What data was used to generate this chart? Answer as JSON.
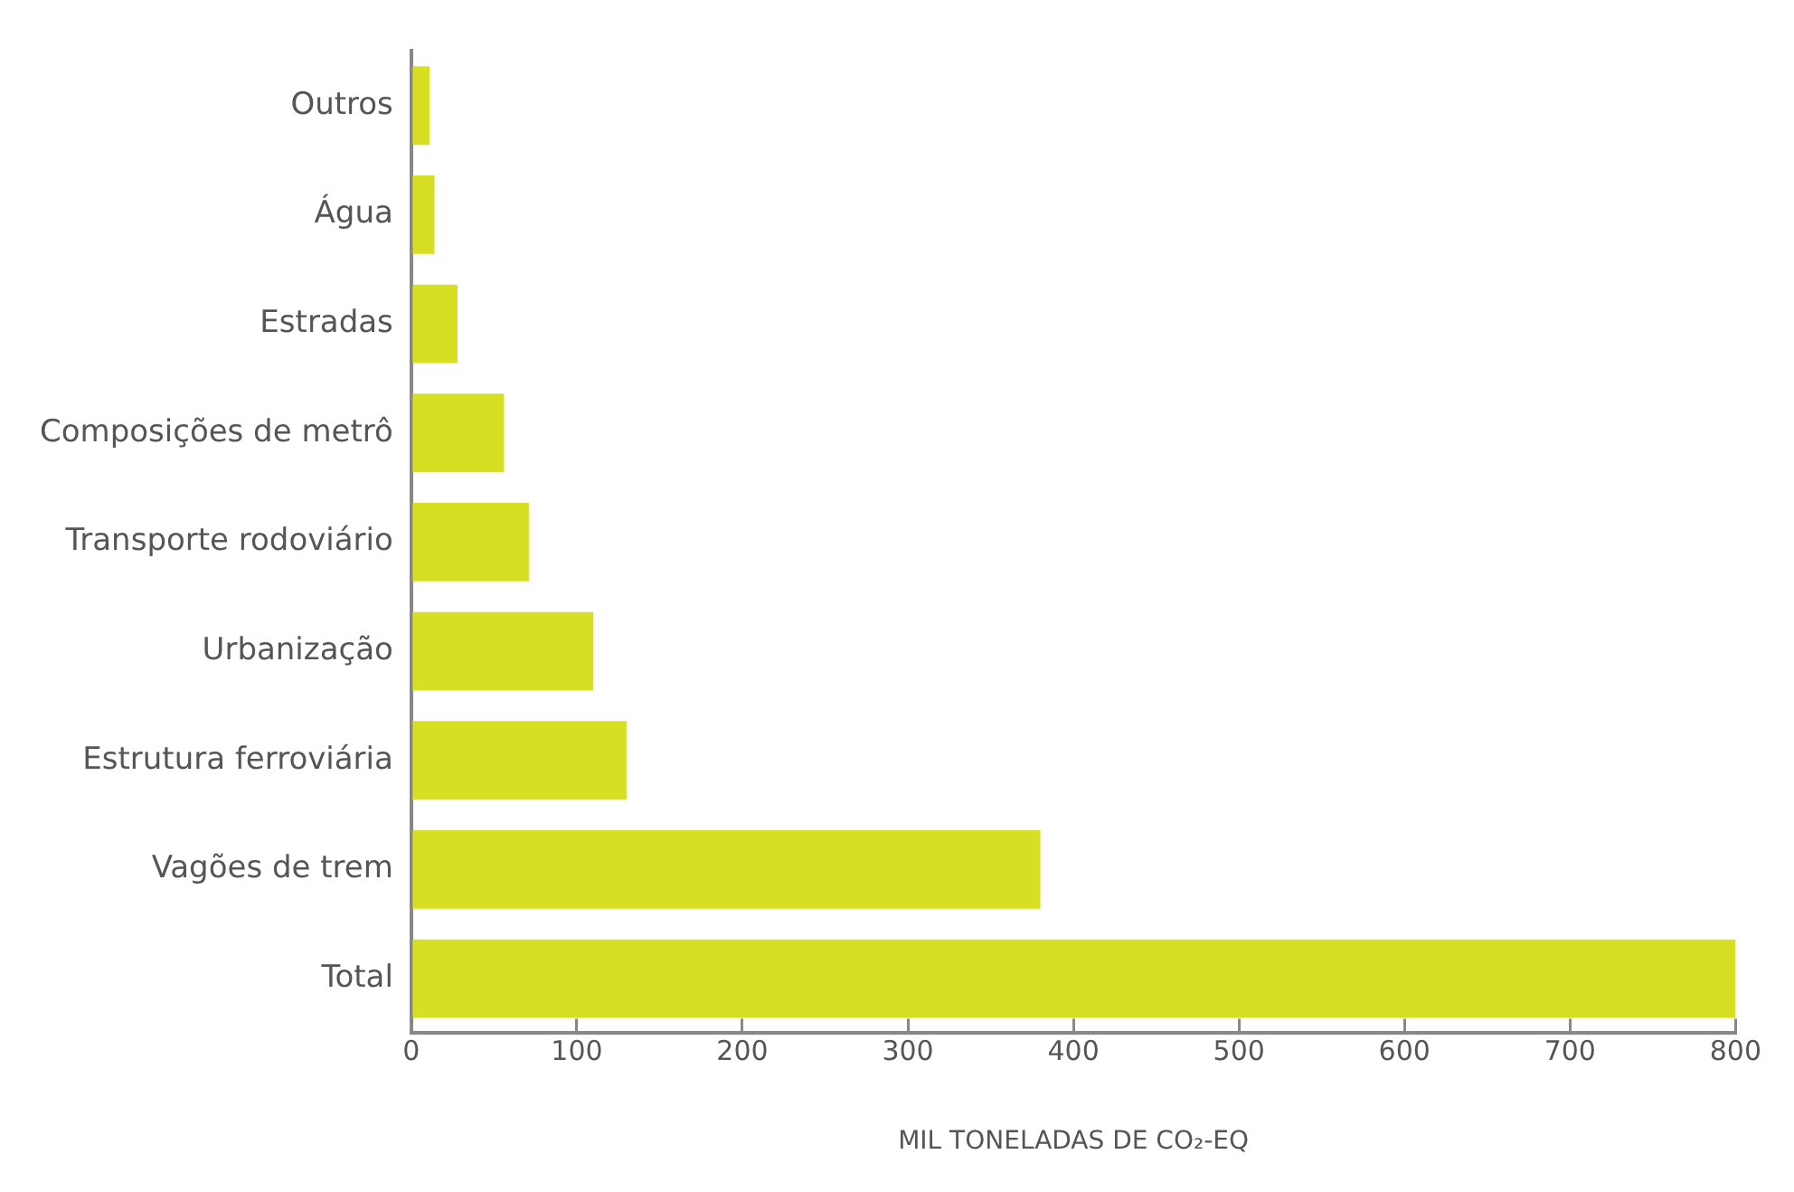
{
  "chart_data": {
    "type": "bar",
    "orientation": "horizontal",
    "xlabel": "MIL TONELADAS DE CO₂-EQ",
    "categories": [
      "Outros",
      "Água",
      "Estradas",
      "Composições de metrô",
      "Transporte rodoviário",
      "Urbanização",
      "Estrutura ferroviária",
      "Vagões de trem",
      "Total"
    ],
    "values": [
      11,
      14,
      28,
      56,
      71,
      110,
      130,
      380,
      800
    ],
    "color": "#d7df23",
    "xlim": [
      0,
      800
    ],
    "xticks": [
      0,
      100,
      200,
      300,
      400,
      500,
      600,
      700,
      800
    ],
    "grid": false,
    "legend": false
  }
}
